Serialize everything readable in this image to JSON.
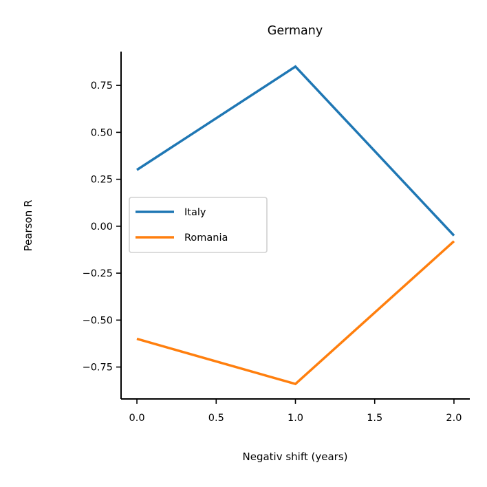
{
  "chart_data": {
    "type": "line",
    "title": "Germany",
    "xlabel": "Negativ shift (years)",
    "ylabel": "Pearson R",
    "xlim": [
      -0.1,
      2.1
    ],
    "ylim": [
      -0.92,
      0.93
    ],
    "xticks": [
      0.0,
      0.5,
      1.0,
      1.5,
      2.0
    ],
    "xtick_labels": [
      "0.0",
      "0.5",
      "1.0",
      "1.5",
      "2.0"
    ],
    "yticks": [
      0.75,
      0.5,
      0.25,
      0.0,
      -0.25,
      -0.5,
      -0.75
    ],
    "ytick_labels": [
      "0.75",
      "0.50",
      "0.25",
      "0.00",
      "−0.25",
      "−0.50",
      "−0.75"
    ],
    "grid": false,
    "legend_position": "center-left",
    "series": [
      {
        "name": "Italy",
        "color": "#1f77b4",
        "x": [
          0.0,
          1.0,
          2.0
        ],
        "y": [
          0.3,
          0.85,
          -0.05
        ]
      },
      {
        "name": "Romania",
        "color": "#ff7f0e",
        "x": [
          0.0,
          1.0,
          2.0
        ],
        "y": [
          -0.6,
          -0.84,
          -0.08
        ]
      }
    ]
  }
}
